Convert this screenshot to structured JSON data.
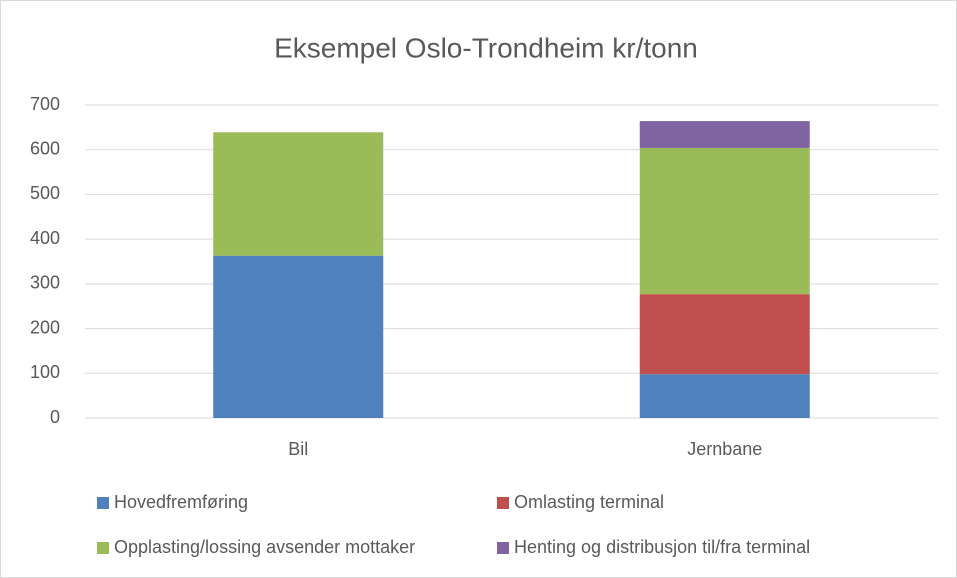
{
  "chart_data": {
    "type": "stacked_bar",
    "title": "Eksempel Oslo-Trondheim kr/tonn",
    "categories": [
      "Bil",
      "Jernbane"
    ],
    "series": [
      {
        "name": "Hovedfremføring",
        "color": "#4f81bd",
        "values": [
          363,
          98
        ]
      },
      {
        "name": "Omlasting terminal",
        "color": "#c0504d",
        "values": [
          0,
          179
        ]
      },
      {
        "name": "Opplasting/lossing avsender mottaker",
        "color": "#9bbb59",
        "values": [
          276,
          327
        ]
      },
      {
        "name": "Henting og distribusjon til/fra terminal",
        "color": "#8064a2",
        "values": [
          0,
          60
        ]
      }
    ],
    "ylim": [
      0,
      700
    ],
    "yticks": [
      0,
      100,
      200,
      300,
      400,
      500,
      600,
      700
    ],
    "grid": true,
    "legend": "bottom"
  }
}
